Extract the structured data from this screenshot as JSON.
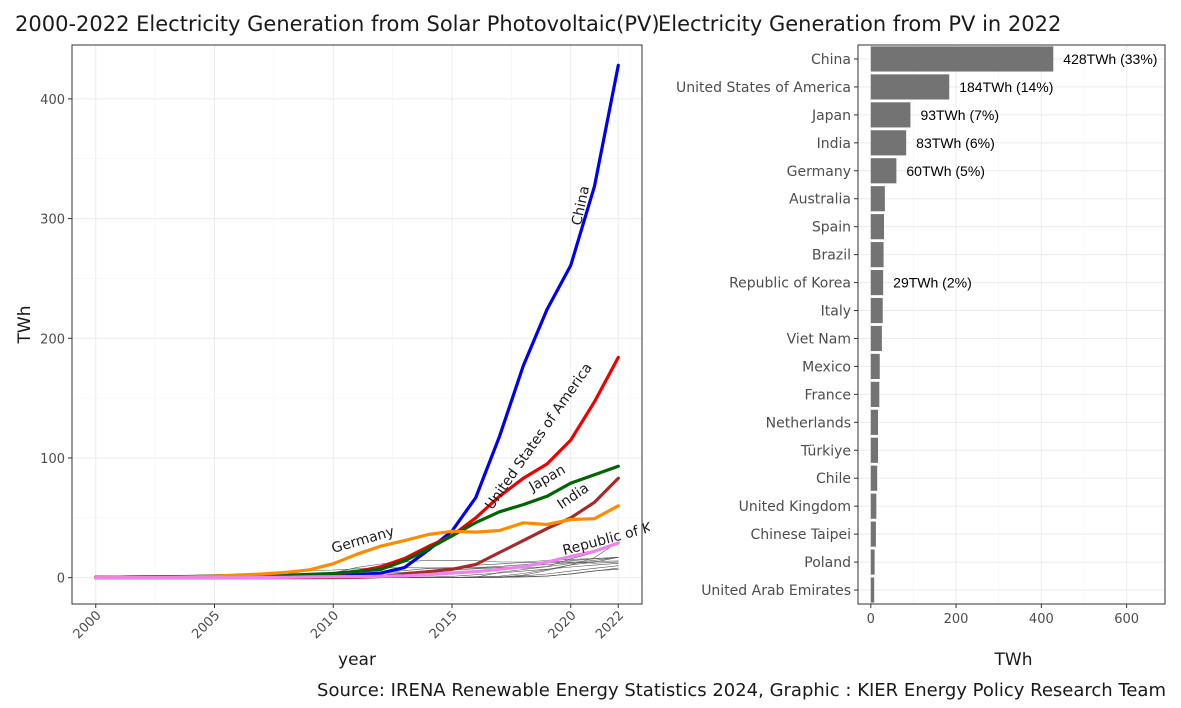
{
  "source": "Source: IRENA Renewable Energy Statistics 2024, Graphic : KIER Energy Policy Research Team",
  "chart_data": [
    {
      "type": "line",
      "title": "2000-2022 Electricity Generation from Solar Photovoltaic(PV)",
      "xlabel": "year",
      "ylabel": "TWh",
      "xlim": [
        1999,
        2023
      ],
      "ylim": [
        -22,
        445
      ],
      "x_ticks": [
        "2000",
        "2005",
        "2010",
        "2015",
        "2020",
        "2022"
      ],
      "y_ticks": [
        "0",
        "100",
        "200",
        "300",
        "400"
      ],
      "grid": true,
      "x": [
        2000,
        2001,
        2002,
        2003,
        2004,
        2005,
        2006,
        2007,
        2008,
        2009,
        2010,
        2011,
        2012,
        2013,
        2014,
        2015,
        2016,
        2017,
        2018,
        2019,
        2020,
        2021,
        2022
      ],
      "series": [
        {
          "name": "China",
          "color": "#0000ee",
          "width": 3.2,
          "values": [
            0,
            0,
            0,
            0,
            0,
            0,
            0.1,
            0.1,
            0.2,
            0.3,
            0.7,
            2.6,
            3.8,
            8.4,
            23,
            39,
            67,
            118,
            177,
            224,
            261,
            327,
            428
          ]
        },
        {
          "name": "United States of America",
          "color": "#ee0000",
          "width": 3.2,
          "values": [
            0.5,
            0.5,
            0.6,
            0.6,
            0.6,
            0.6,
            0.7,
            0.8,
            1.2,
            1.7,
            3.1,
            5.2,
            9.1,
            16,
            26,
            35,
            50,
            68,
            83,
            95,
            115,
            147,
            184
          ]
        },
        {
          "name": "Japan",
          "color": "#006400",
          "width": 3.2,
          "values": [
            0.4,
            0.5,
            0.6,
            0.8,
            1,
            1.5,
            1.8,
            1.9,
            2.0,
            2.8,
            3.5,
            5.2,
            6.9,
            14,
            24,
            35,
            46,
            55,
            61,
            68,
            79,
            86,
            93
          ]
        },
        {
          "name": "India",
          "color": "#a52a2a",
          "width": 3.2,
          "values": [
            0,
            0,
            0,
            0,
            0,
            0,
            0,
            0,
            0,
            0,
            0.1,
            0.2,
            1,
            3,
            5,
            7,
            11,
            21,
            31,
            41,
            50,
            63,
            83
          ]
        },
        {
          "name": "Germany",
          "color": "#ff8c00",
          "width": 3.2,
          "values": [
            0.1,
            0.2,
            0.2,
            0.3,
            0.6,
            1.3,
            2.2,
            3.1,
            4.4,
            6.6,
            11.7,
            19.6,
            26.4,
            31,
            36.1,
            38.7,
            38.1,
            39.4,
            45.8,
            44.4,
            48.6,
            49.3,
            60
          ]
        },
        {
          "name": "Republic of Korea",
          "color": "#ee82ee",
          "width": 3.2,
          "values": [
            0,
            0,
            0,
            0,
            0,
            0,
            0,
            0.1,
            0.3,
            0.6,
            0.8,
            0.9,
            1.1,
            1.6,
            2.6,
            3.9,
            5.1,
            7,
            9.2,
            13,
            17.8,
            22,
            29
          ]
        },
        {
          "name": "",
          "color": "#555555",
          "width": 0.6,
          "values": [
            0,
            0,
            0,
            0,
            0,
            0,
            0,
            0.1,
            0.3,
            1.1,
            4.1,
            8.6,
            11.4,
            13,
            14.6,
            14.2,
            14.3,
            13.1,
            13.1,
            14.3,
            15.3,
            16,
            17
          ]
        },
        {
          "name": "",
          "color": "#555555",
          "width": 0.6,
          "values": [
            0,
            0,
            0,
            0,
            0,
            0,
            0,
            0.5,
            2.6,
            6,
            6.4,
            7.4,
            8.2,
            8.3,
            8.2,
            8.3,
            8,
            8.4,
            7.8,
            9.3,
            15.7,
            21,
            28
          ]
        },
        {
          "name": "",
          "color": "#555555",
          "width": 0.6,
          "values": [
            0,
            0,
            0,
            0,
            0,
            0,
            0,
            0,
            0,
            0,
            0,
            0,
            0,
            0,
            0,
            0.1,
            0.8,
            1.2,
            3.5,
            6.7,
            10.7,
            16.8,
            30
          ]
        },
        {
          "name": "",
          "color": "#555555",
          "width": 0.6,
          "values": [
            0,
            0,
            0,
            0,
            0,
            0.1,
            0.1,
            0.1,
            0.2,
            0.5,
            1.5,
            2.5,
            3.5,
            4.5,
            5.9,
            6.5,
            7.4,
            8.5,
            9.6,
            11,
            12.5,
            14.5,
            17
          ]
        },
        {
          "name": "",
          "color": "#555555",
          "width": 0.6,
          "values": [
            0,
            0,
            0,
            0,
            0,
            0,
            0,
            0,
            0,
            0,
            0,
            0,
            0,
            0,
            0,
            0.1,
            0.2,
            0.5,
            2.1,
            6,
            10.7,
            13,
            17
          ]
        },
        {
          "name": "",
          "color": "#555555",
          "width": 0.6,
          "values": [
            0,
            0,
            0,
            0,
            0,
            0,
            0,
            0,
            0,
            0.1,
            0.5,
            1.6,
            4.2,
            5.9,
            7.6,
            7.8,
            8.4,
            9.4,
            10.8,
            12.7,
            14.2,
            15.8,
            17
          ]
        },
        {
          "name": "",
          "color": "#555555",
          "width": 0.6,
          "values": [
            0,
            0,
            0,
            0,
            0,
            0,
            0,
            0,
            0,
            0,
            0,
            0,
            0,
            0.1,
            0.5,
            1.1,
            2.5,
            3.9,
            5.5,
            7.1,
            8.9,
            10.5,
            12
          ]
        },
        {
          "name": "",
          "color": "#555555",
          "width": 0.6,
          "values": [
            0,
            0,
            0,
            0,
            0,
            0,
            0,
            0,
            0,
            0,
            0,
            0,
            0,
            0,
            0,
            0,
            0.4,
            4.4,
            6.8,
            9.2,
            11.8,
            13.5,
            14
          ]
        },
        {
          "name": "",
          "color": "#555555",
          "width": 0.6,
          "values": [
            0,
            0,
            0,
            0,
            0,
            0,
            0,
            0,
            0,
            0,
            0,
            0.2,
            1.2,
            2,
            4,
            7.5,
            10.4,
            11.5,
            12.7,
            12.6,
            13.2,
            12.1,
            13
          ]
        },
        {
          "name": "",
          "color": "#555555",
          "width": 0.6,
          "values": [
            0,
            0,
            0,
            0,
            0,
            0,
            0,
            0,
            0,
            0,
            0,
            0,
            0,
            0,
            0,
            0.1,
            0.2,
            0.5,
            1.5,
            3.1,
            5.5,
            7.8,
            10
          ]
        },
        {
          "name": "",
          "color": "#555555",
          "width": 0.6,
          "values": [
            0,
            0,
            0,
            0,
            0,
            0,
            0,
            0,
            0,
            0,
            0,
            0,
            0,
            0,
            0,
            0.1,
            0.2,
            0.2,
            0.8,
            1.5,
            3,
            5.5,
            8
          ]
        },
        {
          "name": "",
          "color": "#555555",
          "width": 0.6,
          "values": [
            0,
            0,
            0,
            0,
            0,
            0,
            0,
            0,
            0,
            0,
            0,
            0,
            0,
            0,
            0,
            0,
            0.1,
            0.2,
            0.6,
            1.2,
            3.2,
            5.7,
            7
          ]
        }
      ],
      "annotations": [
        {
          "text": "China",
          "x": 2020.6,
          "y": 310,
          "angle": -78
        },
        {
          "text": "United States of America",
          "x": 2018.8,
          "y": 116,
          "angle": -55
        },
        {
          "text": "Japan",
          "x": 2019.1,
          "y": 80,
          "angle": -30
        },
        {
          "text": "India",
          "x": 2020.2,
          "y": 65,
          "angle": -34
        },
        {
          "text": "Germany",
          "x": 2011.3,
          "y": 28,
          "angle": -16
        },
        {
          "text": "Republic of Korea",
          "x": 2022.2,
          "y": 32,
          "angle": -15
        }
      ]
    },
    {
      "type": "bar",
      "orientation": "horizontal",
      "title": "Electricity Generation from PV in 2022",
      "xlabel": "TWh",
      "ylabel": "",
      "xlim": [
        -30,
        690
      ],
      "x_ticks": [
        "0",
        "200",
        "400",
        "600"
      ],
      "grid": true,
      "bar_color": "#737373",
      "categories": [
        "China",
        "United States of America",
        "Japan",
        "India",
        "Germany",
        "Australia",
        "Spain",
        "Brazil",
        "Republic of Korea",
        "Italy",
        "Viet Nam",
        "Mexico",
        "France",
        "Netherlands",
        "Türkiye",
        "Chile",
        "United Kingdom",
        "Chinese Taipei",
        "Poland",
        "United Arab Emirates"
      ],
      "values": [
        428,
        184,
        93,
        83,
        60,
        33,
        31,
        30,
        29,
        28,
        26,
        21,
        20,
        17,
        17,
        15,
        13,
        12,
        9,
        8
      ],
      "data_labels": [
        "428TWh (33%)",
        "184TWh (14%)",
        "93TWh (7%)",
        "83TWh (6%)",
        "60TWh (5%)",
        "",
        "",
        "",
        "29TWh (2%)",
        "",
        "",
        "",
        "",
        "",
        "",
        "",
        "",
        "",
        "",
        ""
      ]
    }
  ]
}
